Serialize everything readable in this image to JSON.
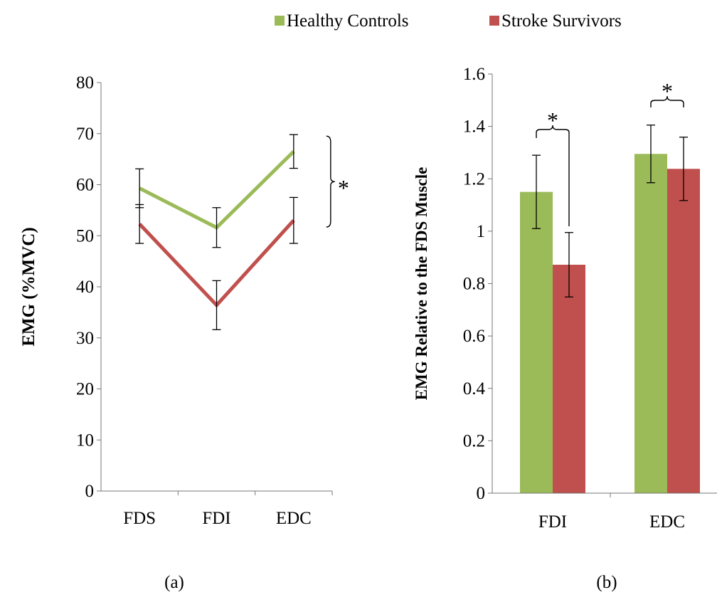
{
  "legend": {
    "items": [
      {
        "label": "Healthy Controls",
        "color": "#9bbb59"
      },
      {
        "label": "Stroke Survivors",
        "color": "#c0504d"
      }
    ]
  },
  "chart_data": [
    {
      "type": "line",
      "panel_label": "(a)",
      "ylabel": "EMG (%MVC)",
      "xlabel": "",
      "categories": [
        "FDS",
        "FDI",
        "EDC"
      ],
      "ylim": [
        0,
        80
      ],
      "yticks": [
        "0",
        "10",
        "20",
        "30",
        "40",
        "50",
        "60",
        "70",
        "80"
      ],
      "series": [
        {
          "name": "Healthy Controls",
          "color": "#9bbb59",
          "values": [
            59.3,
            51.6,
            66.5
          ],
          "err": [
            3.8,
            3.9,
            3.3
          ]
        },
        {
          "name": "Stroke Survivors",
          "color": "#c0504d",
          "values": [
            52.3,
            36.4,
            53.0
          ],
          "err": [
            3.8,
            4.8,
            4.5
          ]
        }
      ],
      "annotation": {
        "text": "*",
        "between": "EDC"
      }
    },
    {
      "type": "bar",
      "panel_label": "(b)",
      "ylabel": "EMG Relative to the FDS Muscle",
      "xlabel": "",
      "categories": [
        "FDI",
        "EDC"
      ],
      "ylim": [
        0,
        1.6
      ],
      "yticks": [
        "0",
        "0.2",
        "0.4",
        "0.6",
        "0.8",
        "1",
        "1.2",
        "1.4",
        "1.6"
      ],
      "series": [
        {
          "name": "Healthy Controls",
          "color": "#9bbb59",
          "values": [
            1.15,
            1.295
          ],
          "err": [
            0.14,
            0.11
          ]
        },
        {
          "name": "Stroke Survivors",
          "color": "#c0504d",
          "values": [
            0.872,
            1.238
          ],
          "err": [
            0.123,
            0.121
          ]
        }
      ],
      "annotations": [
        {
          "text": "*",
          "category": "FDI"
        },
        {
          "text": "*",
          "category": "EDC"
        }
      ]
    }
  ]
}
